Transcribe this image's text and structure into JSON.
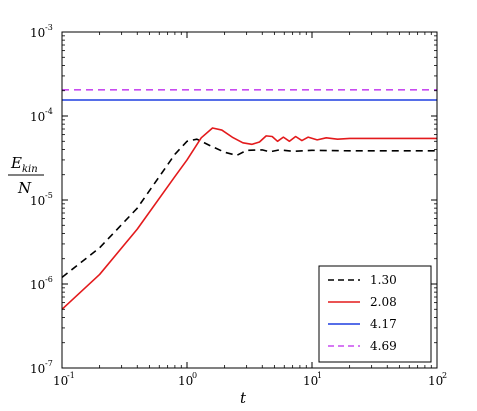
{
  "chart_data": {
    "type": "line",
    "xscale": "log",
    "yscale": "log",
    "xlim": [
      0.1,
      100
    ],
    "ylim": [
      1e-07,
      0.001
    ],
    "xlabel": "t",
    "ylabel": {
      "numerator": "E",
      "subscript": "kin",
      "denominator": "N"
    },
    "x_ticks": [
      {
        "base": "10",
        "exp": "-1"
      },
      {
        "base": "10",
        "exp": "0"
      },
      {
        "base": "10",
        "exp": "1"
      },
      {
        "base": "10",
        "exp": "2"
      }
    ],
    "y_ticks": [
      {
        "base": "10",
        "exp": "-7"
      },
      {
        "base": "10",
        "exp": "-6"
      },
      {
        "base": "10",
        "exp": "-5"
      },
      {
        "base": "10",
        "exp": "-4"
      },
      {
        "base": "10",
        "exp": "-3"
      }
    ],
    "grid": false,
    "legend_position": "bottom-right",
    "series": [
      {
        "name": "1.30",
        "color": "#000000",
        "dash": "dashed",
        "x": [
          0.1,
          0.2,
          0.4,
          0.8,
          1.0,
          1.2,
          1.5,
          2.0,
          2.5,
          3.0,
          4.0,
          4.6,
          5.5,
          7.0,
          10,
          20,
          50,
          100
        ],
        "y": [
          1.2e-06,
          2.7e-06,
          8e-06,
          3.5e-05,
          5e-05,
          5.3e-05,
          4.5e-05,
          3.7e-05,
          3.4e-05,
          3.9e-05,
          3.95e-05,
          3.75e-05,
          3.95e-05,
          3.8e-05,
          3.9e-05,
          3.85e-05,
          3.85e-05,
          3.85e-05
        ]
      },
      {
        "name": "2.08",
        "color": "#e31a1c",
        "dash": "solid",
        "x": [
          0.1,
          0.2,
          0.4,
          0.8,
          1.0,
          1.3,
          1.6,
          1.9,
          2.3,
          2.8,
          3.3,
          3.8,
          4.3,
          4.8,
          5.3,
          5.9,
          6.6,
          7.4,
          8.3,
          9.3,
          11,
          13,
          16,
          20,
          30,
          50,
          100
        ],
        "y": [
          5e-07,
          1.3e-06,
          4.5e-06,
          1.9e-05,
          3e-05,
          5.5e-05,
          7.2e-05,
          6.8e-05,
          5.6e-05,
          4.8e-05,
          4.6e-05,
          4.9e-05,
          5.8e-05,
          5.7e-05,
          5e-05,
          5.6e-05,
          5e-05,
          5.7e-05,
          5.1e-05,
          5.6e-05,
          5.2e-05,
          5.5e-05,
          5.3e-05,
          5.4e-05,
          5.4e-05,
          5.4e-05,
          5.4e-05
        ]
      },
      {
        "name": "4.17",
        "color": "#1f3fe0",
        "dash": "solid",
        "x": [
          0.1,
          100
        ],
        "y": [
          0.000155,
          0.000155
        ]
      },
      {
        "name": "4.69",
        "color": "#c84bf0",
        "dash": "dashed",
        "x": [
          0.1,
          100
        ],
        "y": [
          0.000205,
          0.000205
        ]
      }
    ]
  }
}
